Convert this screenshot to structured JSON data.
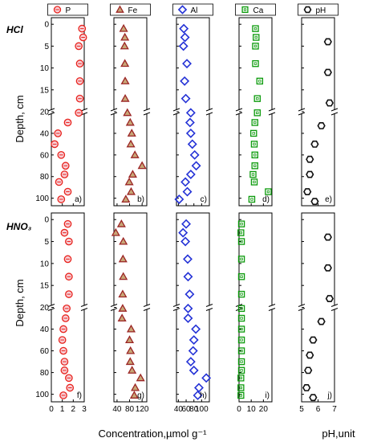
{
  "figure": {
    "y_label": "Depth, cm",
    "x_label_concentration": "Concentration,µmol g⁻¹",
    "x_label_ph": "pH,unit",
    "rows": [
      {
        "name": "HCl",
        "label": "HCl"
      },
      {
        "name": "HNO3",
        "label": "HNO₃"
      }
    ],
    "depth_ticks": [
      "0",
      "5",
      "10",
      "15",
      "20",
      "40",
      "60",
      "80",
      "100"
    ],
    "columns": [
      {
        "key": "P",
        "legend": "P",
        "marker": "circle",
        "color": "#e8231d",
        "fill": "#f7cfd6",
        "xlim": [
          0,
          3
        ],
        "ticks": [
          0,
          1,
          2,
          3
        ],
        "panel_labels": [
          "a)",
          "f)"
        ]
      },
      {
        "key": "Fe",
        "legend": "Fe",
        "marker": "triangle",
        "color": "#9b2424",
        "fill": "#c8a777",
        "xlim": [
          30,
          135
        ],
        "ticks": [
          40,
          80,
          120
        ],
        "panel_labels": [
          "b)",
          "g)"
        ]
      },
      {
        "key": "Al",
        "legend": "Al",
        "marker": "diamond",
        "color": "#2432d6",
        "fill": "none",
        "xlim": [
          35,
          120
        ],
        "ticks": [
          40,
          60,
          80,
          100
        ],
        "panel_labels": [
          "c)",
          "h)"
        ]
      },
      {
        "key": "Ca",
        "legend": "Ca",
        "marker": "square",
        "color": "#0a9a0a",
        "fill": "none",
        "xlim": [
          0,
          27
        ],
        "ticks": [
          0,
          10,
          20
        ],
        "panel_labels": [
          "d)",
          "i)"
        ]
      },
      {
        "key": "pH",
        "legend": "pH",
        "marker": "hexagon",
        "color": "#111111",
        "fill": "none",
        "xlim": [
          5,
          7
        ],
        "ticks": [
          5,
          6,
          7
        ],
        "panel_labels": [
          "e)",
          "j)"
        ]
      }
    ]
  },
  "chart_data": [
    {
      "type": "scatter",
      "title": "HCl",
      "series": [
        {
          "name": "P",
          "depth": [
            1,
            3,
            5,
            9,
            13,
            17,
            21,
            30,
            40,
            50,
            60,
            70,
            78,
            85,
            94,
            101
          ],
          "values": [
            2.8,
            2.9,
            2.5,
            2.6,
            2.6,
            2.6,
            2.5,
            1.5,
            0.6,
            0.3,
            0.9,
            1.3,
            1.2,
            0.7,
            1.5,
            0.9
          ]
        },
        {
          "name": "Fe",
          "depth": [
            1,
            3,
            5,
            9,
            13,
            17,
            21,
            30,
            40,
            50,
            60,
            70,
            78,
            85,
            94,
            101
          ],
          "values": [
            61,
            65,
            64,
            65,
            66,
            66,
            73,
            82,
            87,
            84,
            97,
            120,
            90,
            79,
            85,
            68
          ]
        },
        {
          "name": "Al",
          "depth": [
            1,
            3,
            5,
            9,
            13,
            17,
            21,
            30,
            40,
            50,
            60,
            70,
            78,
            85,
            94,
            101
          ],
          "values": [
            54,
            57,
            53,
            62,
            56,
            59,
            72,
            70,
            72,
            76,
            82,
            86,
            72,
            58,
            63,
            42
          ]
        },
        {
          "name": "Ca",
          "depth": [
            1,
            3,
            5,
            9,
            13,
            17,
            21,
            30,
            40,
            50,
            60,
            70,
            78,
            85,
            94,
            101
          ],
          "values": [
            13.5,
            14,
            13.5,
            13.5,
            17,
            15,
            15,
            13,
            12,
            12.5,
            13,
            13,
            11.5,
            12.5,
            24,
            10.5
          ]
        },
        {
          "name": "pH",
          "depth": [
            4,
            11,
            18,
            33,
            50,
            64,
            78,
            94,
            103
          ],
          "values": [
            6.6,
            6.6,
            6.7,
            6.2,
            5.8,
            5.5,
            5.5,
            5.35,
            5.8
          ]
        }
      ]
    },
    {
      "type": "scatter",
      "title": "HNO₃",
      "series": [
        {
          "name": "P",
          "depth": [
            1,
            3,
            5,
            9,
            13,
            17,
            21,
            30,
            40,
            50,
            60,
            70,
            78,
            85,
            94,
            101
          ],
          "values": [
            1.5,
            1.2,
            1.6,
            1.5,
            1.6,
            1.6,
            1.4,
            1.3,
            1.1,
            1.0,
            1.1,
            1.2,
            1.2,
            1.6,
            1.7,
            1.1
          ]
        },
        {
          "name": "Fe",
          "depth": [
            1,
            3,
            5,
            9,
            13,
            17,
            21,
            30,
            40,
            50,
            60,
            70,
            78,
            85,
            94,
            101
          ],
          "values": [
            54,
            36,
            60,
            59,
            60,
            58,
            58,
            56,
            85,
            80,
            83,
            82,
            88,
            115,
            98,
            95
          ]
        },
        {
          "name": "Al",
          "depth": [
            1,
            3,
            5,
            9,
            13,
            17,
            21,
            30,
            40,
            50,
            60,
            70,
            78,
            85,
            94,
            101
          ],
          "values": [
            60,
            52,
            58,
            64,
            65,
            69,
            65,
            65,
            85,
            80,
            78,
            72,
            80,
            112,
            93,
            90
          ]
        },
        {
          "name": "Ca",
          "depth": [
            1,
            3,
            5,
            9,
            13,
            17,
            21,
            30,
            40,
            50,
            60,
            70,
            78,
            85,
            94,
            101
          ],
          "values": [
            2,
            1.5,
            2,
            2,
            2,
            2,
            2,
            2,
            2,
            2,
            2,
            2,
            2,
            1.5,
            1.5,
            1.5
          ]
        },
        {
          "name": "pH",
          "depth": [
            4,
            11,
            18,
            33,
            50,
            64,
            78,
            94,
            103
          ],
          "values": [
            6.6,
            6.6,
            6.7,
            6.2,
            5.7,
            5.5,
            5.4,
            5.3,
            5.7
          ]
        }
      ]
    }
  ]
}
